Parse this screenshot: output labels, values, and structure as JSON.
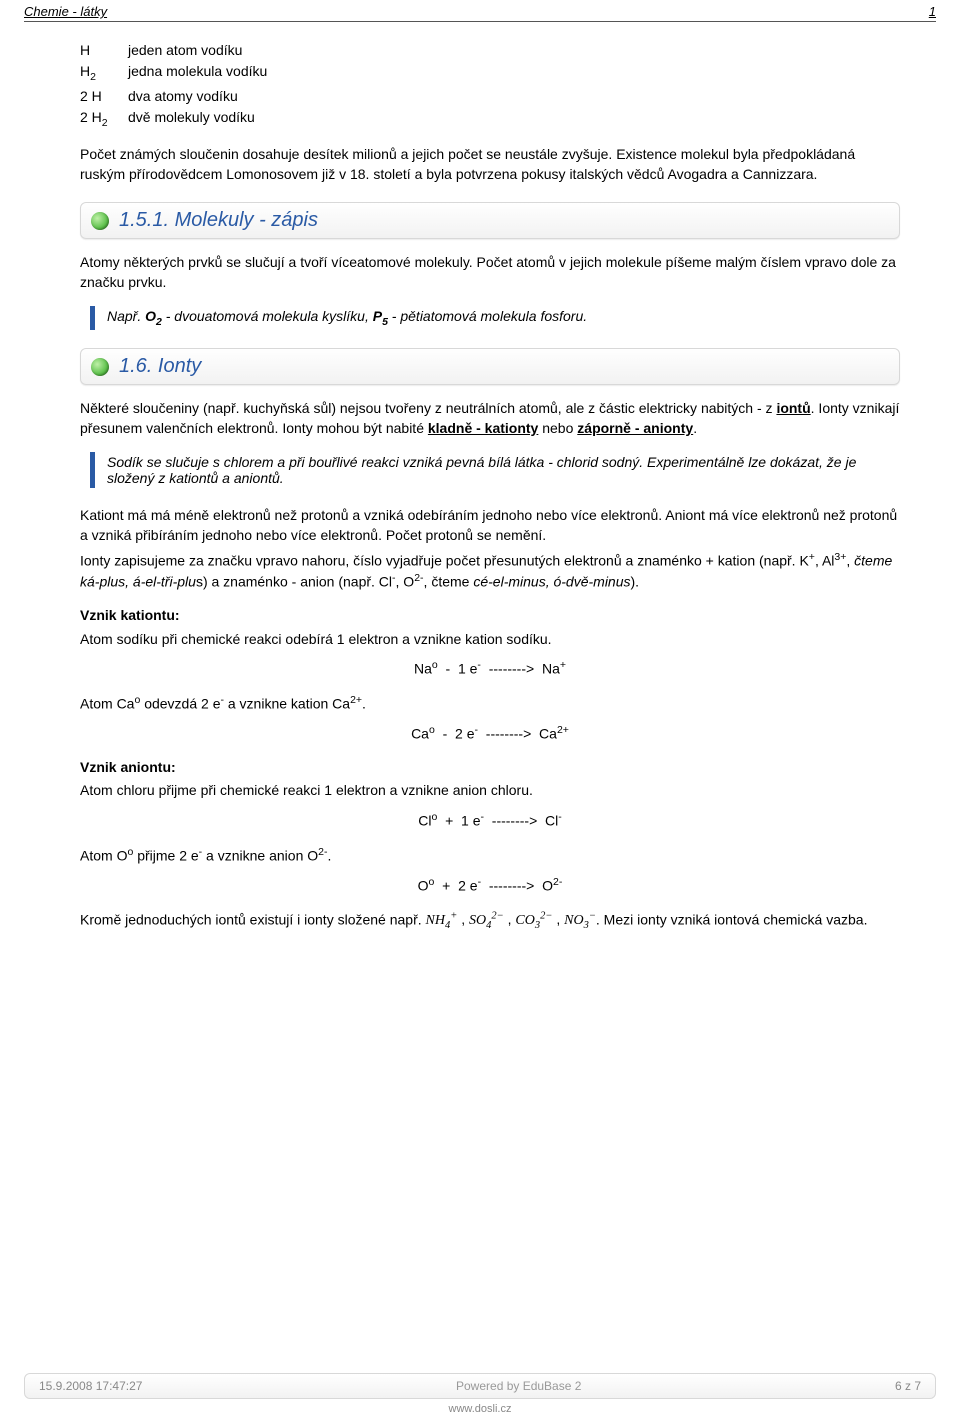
{
  "header": {
    "title": "Chemie - látky",
    "num": "1"
  },
  "atomTable": [
    {
      "sym": "H",
      "desc": "jeden atom vodíku"
    },
    {
      "sym": "H₂",
      "desc": "jedna molekula vodíku"
    },
    {
      "sym": "2 H",
      "desc": "dva atomy vodíku"
    },
    {
      "sym": "2 H₂",
      "desc": "dvě molekuly vodíku"
    }
  ],
  "paraIntro": "Počet známých sloučenin dosahuje desítek milionů a jejich počet se neustále zvyšuje. Existence molekul byla předpokládaná ruským přírodovědcem Lomonosovem již v 18. století a byla potvrzena pokusy italských vědců Avogadra a Cannizzara.",
  "section1": {
    "num": "1.5.1.",
    "title": "Molekuly - zápis"
  },
  "sec1_p": "Atomy některých prvků se slučují a tvoří víceatomové molekuly. Počet atomů v jejich molekule píšeme malým číslem vpravo dole za značku prvku.",
  "sec1_example_pre": "Např. ",
  "sec1_example_o2b": "O₂",
  "sec1_example_mid1": " - dvouatomová molekula kyslíku, ",
  "sec1_example_p5b": "P₅",
  "sec1_example_mid2": " - pětiatomová molekula fosforu.",
  "section2": {
    "num": "1.6.",
    "title": "Ionty"
  },
  "sec2_p1_a": "Některé sloučeniny (např. kuchyňská sůl) nejsou tvořeny z neutrálních atomů, ale z částic elektricky nabitých - z ",
  "sec2_p1_ionTu": "iontů",
  "sec2_p1_b": ". Ionty vznikají přesunem valenčních elektronů. Ionty mohou být nabité ",
  "sec2_p1_kladne": "kladně - kationty",
  "sec2_p1_c": " nebo ",
  "sec2_p1_zaporne": "záporně - anionty",
  "sec2_p1_d": ".",
  "sec2_quote": "Sodík se slučuje s chlorem a při bouřlivé reakci vzniká pevná bílá látka - chlorid sodný. Experimentálně lze dokázat, že je složený z kationtů a aniontů.",
  "sec2_p2": "Kationt má má méně elektronů než protonů a vzniká odebíráním jednoho nebo více elektronů. Aniont má více elektronů než protonů a vzniká přibíráním jednoho nebo více elektronů. Počet protonů se nemění.",
  "sec2_p3_a": "Ionty zapisujeme za značku vpravo nahoru, číslo vyjadřuje počet  přesunutých elektronů a znaménko + kation (např. K",
  "sec2_p3_b": ", Al",
  "sec2_p3_c": ", ",
  "sec2_p3_read1": "čteme ká-plus, á-el-tři-plu",
  "sec2_p3_d": "s) a znaménko - anion (např. Cl",
  "sec2_p3_e": ", O",
  "sec2_p3_f": ", čteme ",
  "sec2_p3_read2": "cé-el-minus, ó-dvě-minus",
  "sec2_p3_g": ").",
  "kation_hdr": "Vznik kationtu:",
  "kation_p": "Atom sodíku při chemické reakci odebírá 1 elektron a vznikne kation sodíku.",
  "eq_na": "Naᵒ  -  1 e⁻  -------->  Na⁺",
  "kation_ca_p_a": "Atom Ca",
  "kation_ca_p_b": " odevzdá  2 e",
  "kation_ca_p_c": " a vznikne  kation Ca",
  "kation_ca_p_d": ".",
  "eq_ca": "Caᵒ  -  2 e⁻  -------->  Ca²⁺",
  "anion_hdr": "Vznik aniontu:",
  "anion_p": "Atom chloru přijme při chemické reakci 1 elektron a vznikne anion chloru.",
  "eq_cl": "Clᵒ  +  1 e⁻  -------->  Cl⁻",
  "anion_o_p_a": "Atom O",
  "anion_o_p_b": " přijme 2 e",
  "anion_o_p_c": " a vznikne anion O",
  "anion_o_p_d": ".",
  "eq_o": "Oᵒ  +  2 e⁻  -------->  O²⁻",
  "complex_a": "Kromě jednoduchých iontů existují i ionty složené např. ",
  "complex_ions": [
    "NH₄⁺",
    "SO₄²⁻",
    "CO₃²⁻",
    "NO₃⁻"
  ],
  "complex_b": ". Mezi ionty vzniká iontová chemická vazba.",
  "footer": {
    "date": "15.9.2008 17:47:27",
    "powered": "Powered by EduBase 2",
    "page": "6 z 7",
    "url": "www.dosli.cz"
  },
  "colors": {
    "heading_text": "#2a5aa5",
    "quote_border": "#2a5aa5",
    "footer_text": "#888888",
    "border_gray": "#d8d8d8",
    "bg": "#ffffff"
  }
}
